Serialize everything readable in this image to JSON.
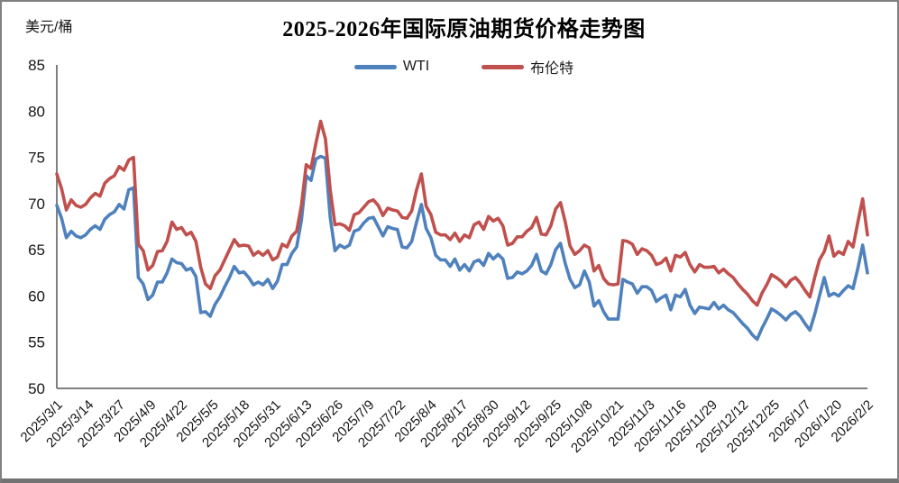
{
  "header": {
    "unit_label": "美元/桶",
    "title": "2025-2026年国际原油期货价格走势图"
  },
  "legend": {
    "items": [
      {
        "name": "WTI",
        "color": "#4F81BD"
      },
      {
        "name": "布伦特",
        "color": "#C0504D"
      }
    ]
  },
  "axis_colors": {
    "line": "#808080",
    "text": "#151515"
  },
  "chart_data": {
    "type": "line",
    "title": "2025-2026年国际原油期货价格走势图",
    "xlabel": "",
    "ylabel": "美元/桶",
    "ylim": [
      50,
      85
    ],
    "ytick_step": 5,
    "grid": false,
    "legend_position": "top-center",
    "x_start_date": "2025/3/1",
    "x_end_date": "2026/2/2",
    "sample_interval_days": 2,
    "tick_interval_days": 13,
    "x_tick_labels": [
      "2025/3/1",
      "2025/3/14",
      "2025/3/27",
      "2025/4/9",
      "2025/4/22",
      "2025/5/5",
      "2025/5/18",
      "2025/5/31",
      "2025/6/13",
      "2025/6/26",
      "2025/7/9",
      "2025/7/22",
      "2025/8/4",
      "2025/8/17",
      "2025/8/30",
      "2025/9/12",
      "2025/9/25",
      "2025/10/8",
      "2025/10/21",
      "2025/11/3",
      "2025/11/16",
      "2025/11/29",
      "2025/12/12",
      "2025/12/25",
      "2026/1/7",
      "2026/1/20",
      "2026/2/2"
    ],
    "series": [
      {
        "name": "WTI",
        "color": "#4F81BD",
        "values": [
          69.8,
          68.4,
          66.3,
          67.0,
          66.5,
          66.3,
          66.6,
          67.2,
          67.6,
          67.2,
          68.3,
          68.8,
          69.1,
          69.9,
          69.4,
          71.5,
          71.7,
          62.0,
          61.3,
          59.6,
          60.1,
          61.5,
          61.5,
          62.5,
          64.0,
          63.6,
          63.5,
          62.8,
          63.0,
          62.1,
          58.2,
          58.3,
          57.8,
          59.1,
          59.9,
          61.0,
          62.0,
          63.2,
          62.5,
          62.6,
          62.0,
          61.2,
          61.5,
          61.2,
          61.8,
          60.8,
          61.6,
          63.4,
          63.4,
          64.6,
          65.3,
          68.2,
          73.0,
          72.5,
          74.8,
          75.1,
          74.9,
          68.5,
          64.9,
          65.5,
          65.2,
          65.5,
          67.0,
          67.2,
          67.9,
          68.4,
          68.5,
          67.5,
          66.5,
          67.5,
          67.3,
          67.2,
          65.3,
          65.2,
          65.9,
          68.0,
          69.9,
          67.3,
          66.3,
          64.4,
          63.9,
          63.9,
          63.2,
          64.0,
          62.8,
          63.4,
          62.7,
          63.7,
          63.9,
          63.3,
          64.6,
          64.0,
          64.5,
          64.0,
          61.9,
          62.0,
          62.6,
          62.4,
          62.7,
          63.3,
          64.5,
          62.7,
          62.4,
          63.4,
          65.0,
          65.7,
          63.5,
          61.8,
          60.9,
          61.2,
          62.7,
          61.5,
          58.9,
          59.5,
          58.3,
          57.5,
          57.5,
          57.5,
          61.8,
          61.5,
          61.3,
          60.3,
          61.0,
          61.0,
          60.6,
          59.4,
          59.8,
          60.1,
          58.5,
          60.1,
          59.9,
          60.7,
          59.0,
          58.1,
          58.8,
          58.7,
          58.6,
          59.3,
          58.6,
          59.0,
          58.5,
          58.2,
          57.6,
          57.0,
          56.5,
          55.8,
          55.3,
          56.5,
          57.5,
          58.6,
          58.3,
          57.9,
          57.4,
          58.0,
          58.3,
          57.8,
          57.0,
          56.3,
          58.0,
          60.0,
          62.0,
          60.0,
          60.3,
          60.0,
          60.6,
          61.1,
          60.8,
          63.0,
          65.5,
          62.5
        ]
      },
      {
        "name": "布伦特",
        "color": "#C0504D",
        "values": [
          73.2,
          71.6,
          69.3,
          70.4,
          69.8,
          69.6,
          69.9,
          70.6,
          71.1,
          70.8,
          72.2,
          72.7,
          73.0,
          74.0,
          73.6,
          74.7,
          75.0,
          65.6,
          64.9,
          62.8,
          63.3,
          64.8,
          64.9,
          65.9,
          68.0,
          67.2,
          67.4,
          66.6,
          66.9,
          65.9,
          63.1,
          61.3,
          60.8,
          62.2,
          62.8,
          63.9,
          65.0,
          66.1,
          65.4,
          65.5,
          65.4,
          64.4,
          64.8,
          64.4,
          64.9,
          63.9,
          64.2,
          65.6,
          65.3,
          66.5,
          67.0,
          69.8,
          74.2,
          73.8,
          76.5,
          78.9,
          77.0,
          71.5,
          67.7,
          67.8,
          67.6,
          67.1,
          68.8,
          69.0,
          69.6,
          70.2,
          70.4,
          69.8,
          68.7,
          69.5,
          69.3,
          69.2,
          68.5,
          68.4,
          69.2,
          71.5,
          73.2,
          69.7,
          68.8,
          66.9,
          66.6,
          66.6,
          66.1,
          66.8,
          65.9,
          66.6,
          66.3,
          67.7,
          68.0,
          67.2,
          68.6,
          68.1,
          68.4,
          67.6,
          65.5,
          65.7,
          66.4,
          66.4,
          67.0,
          67.4,
          68.5,
          66.7,
          66.6,
          67.6,
          69.4,
          70.1,
          68.0,
          65.4,
          64.5,
          64.9,
          65.5,
          65.2,
          62.7,
          63.3,
          61.9,
          61.3,
          61.2,
          61.3,
          66.0,
          65.9,
          65.6,
          64.5,
          65.1,
          64.9,
          64.4,
          63.4,
          63.6,
          64.1,
          62.7,
          64.4,
          64.2,
          64.7,
          63.4,
          62.6,
          63.4,
          63.1,
          63.1,
          63.2,
          62.5,
          62.9,
          62.4,
          62.0,
          61.3,
          60.7,
          60.2,
          59.5,
          59.0,
          60.3,
          61.2,
          62.3,
          62.0,
          61.6,
          61.0,
          61.7,
          62.0,
          61.4,
          60.6,
          59.9,
          62.0,
          63.9,
          64.8,
          66.5,
          64.3,
          64.8,
          64.5,
          65.9,
          65.3,
          68.0,
          70.5,
          66.6
        ]
      }
    ]
  }
}
